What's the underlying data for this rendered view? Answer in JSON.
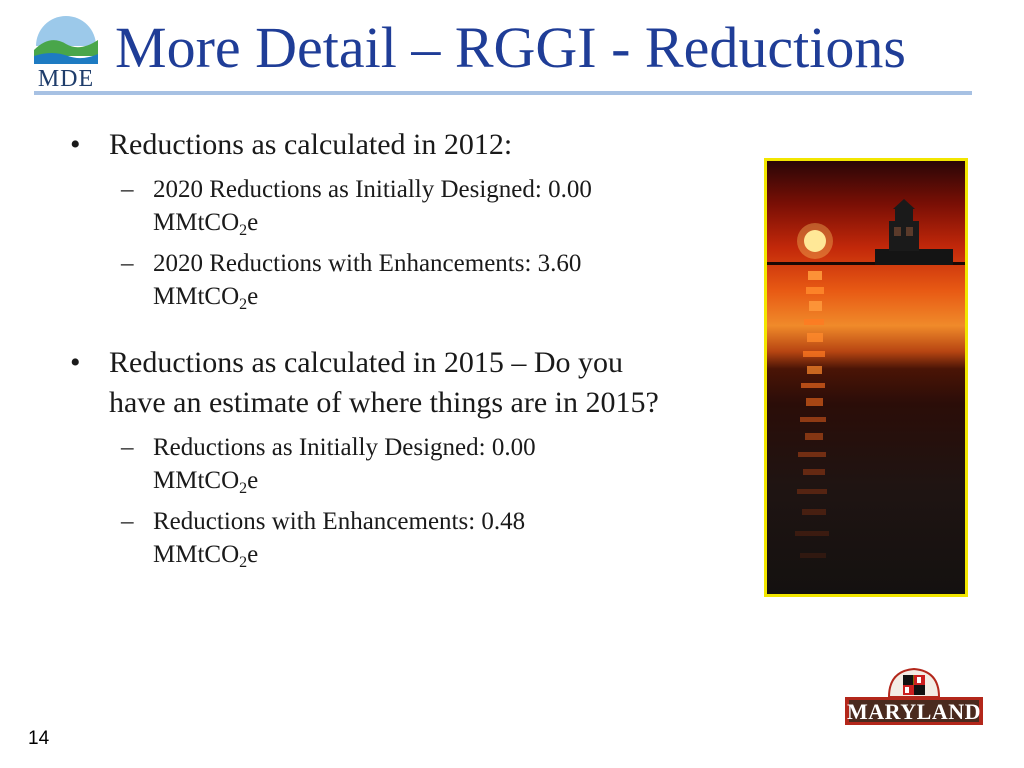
{
  "slide": {
    "title": "More Detail – RGGI - Reductions",
    "page_number": "14"
  },
  "logo": {
    "text": "MDE"
  },
  "bullets": [
    {
      "text": "Reductions as calculated in 2012:",
      "sub": [
        {
          "line1": "2020 Reductions as Initially Designed: 0.00",
          "unit_pre": "MMtCO",
          "unit_sub": "2",
          "unit_post": "e"
        },
        {
          "line1": "2020 Reductions with Enhancements: 3.60",
          "unit_pre": "MMtCO",
          "unit_sub": "2",
          "unit_post": "e"
        }
      ]
    },
    {
      "text": "Reductions as calculated in 2015 – Do you have an estimate of where things are in 2015?",
      "sub": [
        {
          "line1": "Reductions as Initially Designed: 0.00",
          "unit_pre": "MMtCO",
          "unit_sub": "2",
          "unit_post": "e"
        },
        {
          "line1": "Reductions with Enhancements: 0.48",
          "unit_pre": "MMtCO",
          "unit_sub": "2",
          "unit_post": "e"
        }
      ]
    }
  ],
  "maryland_logo": {
    "text": "MARYLAND"
  },
  "colors": {
    "title": "#1f3d97",
    "rule": "#a7c1e3",
    "photo_border": "#f2e600",
    "md_frame": "#b3271b"
  }
}
